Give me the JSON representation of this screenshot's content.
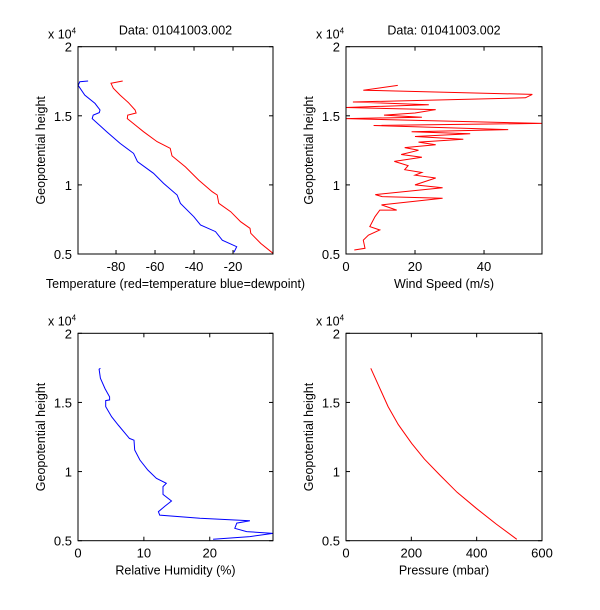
{
  "chart_data": [
    {
      "type": "line",
      "title": "Data: 01041003.002",
      "xlabel": "Temperature (red=temperature blue=dewpoint)",
      "ylabel": "Geopotential height",
      "y_exponent_label": "x 10",
      "y_exponent": "4",
      "xlim": [
        -99.5,
        0.5
      ],
      "ylim": [
        0.5,
        2
      ],
      "xticks": [
        -80,
        -60,
        -40,
        -20
      ],
      "yticks": [
        0.5,
        1,
        1.5,
        2
      ],
      "grid": false,
      "series": [
        {
          "color": "#ff0000",
          "points": [
            [
              -76.6,
              1.752
            ],
            [
              -82.6,
              1.735
            ],
            [
              -81.4,
              1.7
            ],
            [
              -77.9,
              1.65
            ],
            [
              -73.6,
              1.595
            ],
            [
              -70.2,
              1.542
            ],
            [
              -69.7,
              1.52
            ],
            [
              -74,
              1.505
            ],
            [
              -74.2,
              1.48
            ],
            [
              -65.9,
              1.385
            ],
            [
              -59,
              1.313
            ],
            [
              -52.2,
              1.265
            ],
            [
              -51.3,
              1.21
            ],
            [
              -44.4,
              1.13
            ],
            [
              -37.6,
              1.035
            ],
            [
              -30.7,
              0.951
            ],
            [
              -28.1,
              0.927
            ],
            [
              -27.3,
              0.867
            ],
            [
              -21.2,
              0.806
            ],
            [
              -16.1,
              0.734
            ],
            [
              -11.3,
              0.686
            ],
            [
              -10.9,
              0.65
            ],
            [
              -5.8,
              0.577
            ],
            [
              0.5,
              0.505
            ]
          ]
        },
        {
          "color": "#0000ff",
          "points": [
            [
              -94.3,
              1.752
            ],
            [
              -98.6,
              1.747
            ],
            [
              -99.4,
              1.72
            ],
            [
              -96,
              1.65
            ],
            [
              -90.8,
              1.59
            ],
            [
              -88.2,
              1.542
            ],
            [
              -88.6,
              1.523
            ],
            [
              -91.7,
              1.505
            ],
            [
              -92.2,
              1.48
            ],
            [
              -84.8,
              1.385
            ],
            [
              -77.9,
              1.3
            ],
            [
              -71,
              1.228
            ],
            [
              -69,
              1.168
            ],
            [
              -60.8,
              1.084
            ],
            [
              -55.6,
              1.011
            ],
            [
              -48.7,
              0.927
            ],
            [
              -47,
              0.867
            ],
            [
              -40.1,
              0.77
            ],
            [
              -36.7,
              0.71
            ],
            [
              -29,
              0.662
            ],
            [
              -25.5,
              0.6
            ],
            [
              -18.1,
              0.553
            ],
            [
              -19.2,
              0.522
            ],
            [
              -19.6,
              0.512
            ]
          ]
        }
      ]
    },
    {
      "type": "line",
      "title": "Data: 01041003.002",
      "xlabel": "Wind Speed (m/s)",
      "ylabel": "Geopotential height",
      "y_exponent_label": "x 10",
      "y_exponent": "4",
      "xlim": [
        0,
        56.8
      ],
      "ylim": [
        0.5,
        2
      ],
      "xticks": [
        0,
        20,
        40
      ],
      "yticks": [
        0.5,
        1,
        1.5,
        2
      ],
      "grid": false,
      "series": [
        {
          "color": "#ff0000",
          "points": [
            [
              2.4,
              0.529
            ],
            [
              5.5,
              0.541
            ],
            [
              5,
              0.6
            ],
            [
              6.5,
              0.636
            ],
            [
              9.8,
              0.674
            ],
            [
              6.9,
              0.698
            ],
            [
              8.4,
              0.77
            ],
            [
              9.8,
              0.818
            ],
            [
              14.7,
              0.818
            ],
            [
              10.3,
              0.855
            ],
            [
              28,
              0.903
            ],
            [
              10.5,
              0.915
            ],
            [
              8.5,
              0.93
            ],
            [
              28,
              0.98
            ],
            [
              20,
              1.0
            ],
            [
              26,
              1.05
            ],
            [
              20,
              1.07
            ],
            [
              22,
              1.09
            ],
            [
              17,
              1.11
            ],
            [
              18,
              1.14
            ],
            [
              14,
              1.17
            ],
            [
              22,
              1.2
            ],
            [
              16,
              1.22
            ],
            [
              21,
              1.25
            ],
            [
              17,
              1.27
            ],
            [
              26,
              1.29
            ],
            [
              21,
              1.31
            ],
            [
              34,
              1.33
            ],
            [
              20,
              1.35
            ],
            [
              36,
              1.37
            ],
            [
              19,
              1.385
            ],
            [
              47,
              1.4
            ],
            [
              8,
              1.43
            ],
            [
              56.8,
              1.445
            ],
            [
              0,
              1.48
            ],
            [
              22,
              1.49
            ],
            [
              11,
              1.505
            ],
            [
              20,
              1.52
            ],
            [
              26,
              1.545
            ],
            [
              0,
              1.56
            ],
            [
              24,
              1.58
            ],
            [
              2,
              1.6
            ],
            [
              52,
              1.63
            ],
            [
              54,
              1.655
            ],
            [
              5,
              1.685
            ],
            [
              15,
              1.72
            ]
          ]
        }
      ]
    },
    {
      "type": "line",
      "title": "",
      "xlabel": "Relative Humidity (%)",
      "ylabel": "Geopotential height",
      "y_exponent_label": "x 10",
      "y_exponent": "4",
      "xlim": [
        0,
        29.6
      ],
      "ylim": [
        0.5,
        2
      ],
      "xticks": [
        0,
        10,
        20
      ],
      "yticks": [
        0.5,
        1,
        1.5,
        2
      ],
      "grid": false,
      "series": [
        {
          "color": "#0000ff",
          "points": [
            [
              3.4,
              1.747
            ],
            [
              3.2,
              1.74
            ],
            [
              3.4,
              1.675
            ],
            [
              4.1,
              1.6
            ],
            [
              4.8,
              1.54
            ],
            [
              4.8,
              1.518
            ],
            [
              4.2,
              1.513
            ],
            [
              4.2,
              1.47
            ],
            [
              5.1,
              1.397
            ],
            [
              6.1,
              1.337
            ],
            [
              7.8,
              1.24
            ],
            [
              8.5,
              1.227
            ],
            [
              8.6,
              1.156
            ],
            [
              9.4,
              1.084
            ],
            [
              10.6,
              1.011
            ],
            [
              11.9,
              0.951
            ],
            [
              13.4,
              0.915
            ],
            [
              12.9,
              0.891
            ],
            [
              12.9,
              0.835
            ],
            [
              14.2,
              0.787
            ],
            [
              13.2,
              0.75
            ],
            [
              12.2,
              0.71
            ],
            [
              12.4,
              0.685
            ],
            [
              18.5,
              0.662
            ],
            [
              26.1,
              0.645
            ],
            [
              24.1,
              0.627
            ],
            [
              23.8,
              0.59
            ],
            [
              25.6,
              0.566
            ],
            [
              29.6,
              0.553
            ],
            [
              26.1,
              0.53
            ],
            [
              20.5,
              0.51
            ]
          ]
        }
      ]
    },
    {
      "type": "line",
      "title": "",
      "xlabel": "Pressure (mbar)",
      "ylabel": "Geopotential height",
      "y_exponent_label": "x 10",
      "y_exponent": "4",
      "xlim": [
        0,
        600
      ],
      "ylim": [
        0.5,
        2
      ],
      "xticks": [
        0,
        200,
        400,
        600
      ],
      "yticks": [
        0.5,
        1,
        1.5,
        2
      ],
      "grid": false,
      "series": [
        {
          "color": "#ff0000",
          "points": [
            [
              76,
              1.747
            ],
            [
              100,
              1.62
            ],
            [
              129,
              1.47
            ],
            [
              160,
              1.34
            ],
            [
              201,
              1.204
            ],
            [
              240,
              1.09
            ],
            [
              287,
              0.975
            ],
            [
              340,
              0.85
            ],
            [
              399,
              0.734
            ],
            [
              460,
              0.62
            ],
            [
              523,
              0.51
            ]
          ]
        }
      ]
    }
  ]
}
